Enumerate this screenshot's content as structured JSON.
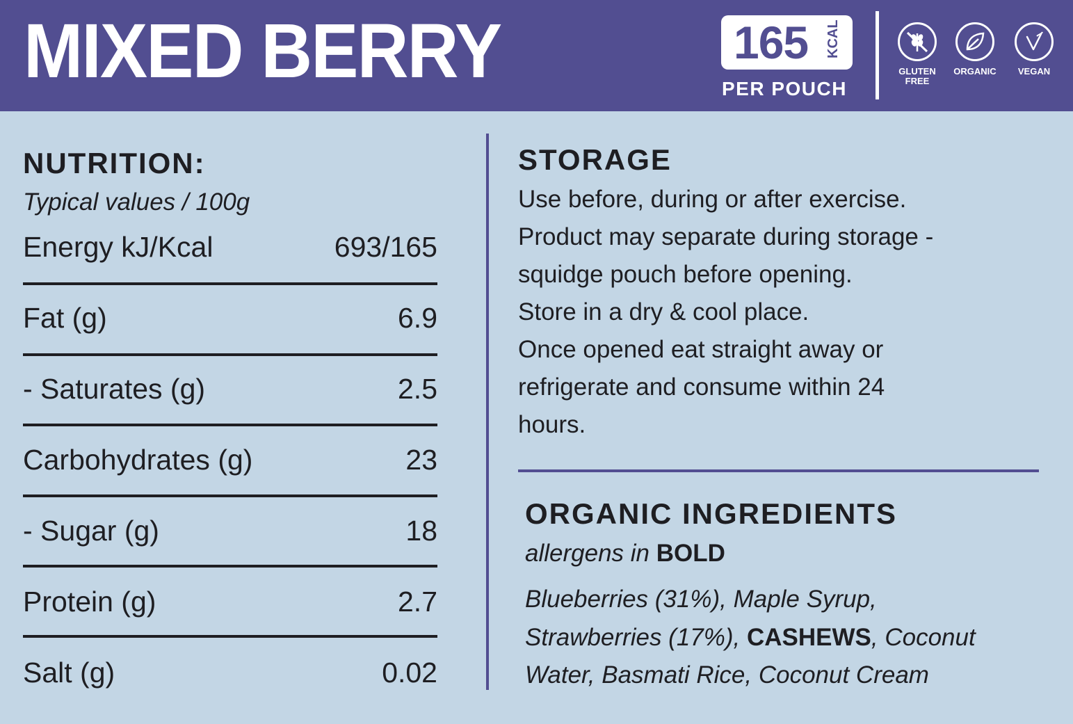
{
  "header": {
    "title": "MIXED BERRY",
    "kcal_value": "165",
    "kcal_unit": "KCAL",
    "per_pouch": "PER POUCH",
    "badges": [
      {
        "label": "GLUTEN\nFREE",
        "icon": "gluten-free-icon"
      },
      {
        "label": "ORGANIC",
        "icon": "organic-leaf-icon"
      },
      {
        "label": "VEGAN",
        "icon": "vegan-icon"
      }
    ]
  },
  "nutrition": {
    "heading": "NUTRITION:",
    "subheading": "Typical values / 100g",
    "rows": [
      {
        "label": "Energy kJ/Kcal",
        "value": "693/165"
      },
      {
        "label": "Fat (g)",
        "value": "6.9"
      },
      {
        "label": "- Saturates (g)",
        "value": "2.5"
      },
      {
        "label": "Carbohydrates (g)",
        "value": "23"
      },
      {
        "label": "- Sugar (g)",
        "value": "18"
      },
      {
        "label": "Protein (g)",
        "value": "2.7"
      },
      {
        "label": "Salt (g)",
        "value": "0.02"
      }
    ]
  },
  "storage": {
    "heading": "STORAGE",
    "lines": [
      "Use before, during or after exercise.",
      "Product may separate during storage -",
      "squidge pouch before opening.",
      "Store in a dry & cool place.",
      "Once opened eat straight away or",
      "refrigerate and consume within 24",
      "hours."
    ]
  },
  "ingredients": {
    "heading": "ORGANIC INGREDIENTS",
    "sub_italic": "allergens in ",
    "sub_bold": "BOLD",
    "line1": "Blueberries (31%), Maple Syrup,",
    "line2_a": "Strawberries (17%), ",
    "line2_allergen": "CASHEWS",
    "line2_b": ", Coconut",
    "line3": "Water, Basmati Rice, Coconut Cream"
  },
  "colors": {
    "header_bg": "#524e91",
    "panel_bg": "#c3d6e5",
    "text": "#1e1e22",
    "accent": "#524e91"
  }
}
